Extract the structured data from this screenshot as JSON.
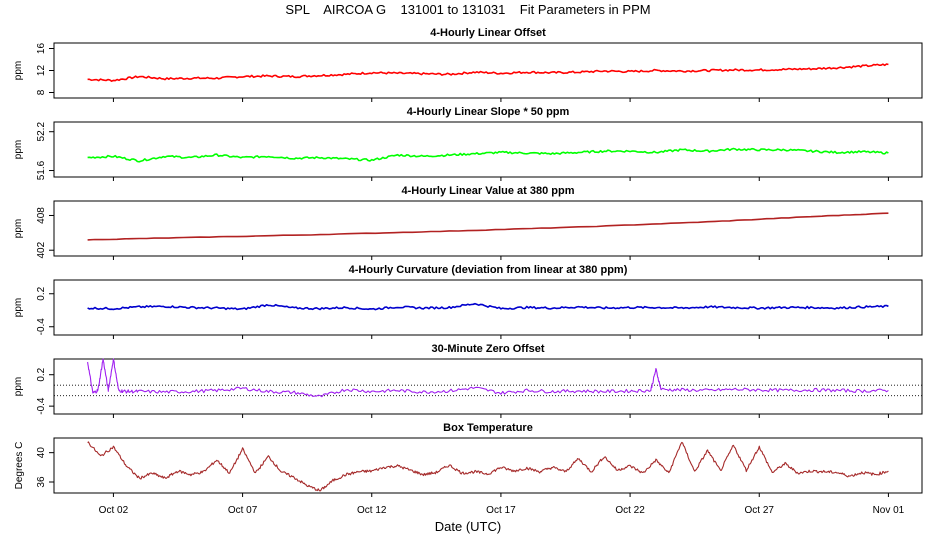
{
  "title": "SPL    AIRCOA G    131001 to 131031    Fit Parameters in PPM",
  "x_axis": {
    "title": "Date (UTC)",
    "ticks": [
      "Oct 02",
      "Oct 07",
      "Oct 12",
      "Oct 17",
      "Oct 22",
      "Oct 27",
      "Nov 01"
    ],
    "tick_days": [
      2,
      7,
      12,
      17,
      22,
      27,
      32
    ],
    "range_days": [
      -0.3,
      33.3
    ],
    "data_range_days": [
      1.0,
      32.0
    ]
  },
  "chart_data": [
    {
      "type": "line",
      "title": "4-Hourly Linear Offset",
      "ylabel": "ppm",
      "yticks": [
        "8",
        "12",
        "16"
      ],
      "ytick_values": [
        8,
        12,
        16
      ],
      "ylim": [
        7,
        17
      ],
      "color": "#ff0000",
      "series": [
        {
          "x": [
            1,
            2,
            3,
            4,
            5,
            6,
            7,
            8,
            9,
            10,
            11,
            12,
            13,
            14,
            15,
            16,
            17,
            18,
            19,
            20,
            21,
            22,
            23,
            24,
            25,
            26,
            27,
            28,
            29,
            30,
            31,
            32
          ],
          "y": [
            10.4,
            10.2,
            10.9,
            10.5,
            10.6,
            10.6,
            10.9,
            11.0,
            10.9,
            11.1,
            11.3,
            11.6,
            11.5,
            11.4,
            11.3,
            11.7,
            11.5,
            11.7,
            11.6,
            11.7,
            11.9,
            11.8,
            12.0,
            11.9,
            12.0,
            12.1,
            12.1,
            12.2,
            12.3,
            12.5,
            12.8,
            13.1
          ]
        }
      ]
    },
    {
      "type": "line",
      "title": "4-Hourly Linear Slope * 50 ppm",
      "ylabel": "ppm",
      "yticks": [
        "51.6",
        "52.2"
      ],
      "ytick_values": [
        51.6,
        52.2
      ],
      "ylim": [
        51.5,
        52.35
      ],
      "color": "#00ff00",
      "series": [
        {
          "x": [
            1,
            2,
            3,
            4,
            5,
            6,
            7,
            8,
            9,
            10,
            11,
            12,
            13,
            14,
            15,
            16,
            17,
            18,
            19,
            20,
            21,
            22,
            23,
            24,
            25,
            26,
            27,
            28,
            29,
            30,
            31,
            32
          ],
          "y": [
            51.8,
            51.82,
            51.75,
            51.82,
            51.8,
            51.84,
            51.8,
            51.82,
            51.79,
            51.8,
            51.78,
            51.76,
            51.84,
            51.82,
            51.84,
            51.86,
            51.88,
            51.87,
            51.86,
            51.88,
            51.9,
            51.9,
            51.88,
            51.92,
            51.9,
            51.93,
            51.92,
            51.92,
            51.9,
            51.88,
            51.89,
            51.87
          ]
        }
      ]
    },
    {
      "type": "line",
      "title": "4-Hourly Linear Value at 380 ppm",
      "ylabel": "ppm",
      "yticks": [
        "402",
        "408"
      ],
      "ytick_values": [
        402,
        408
      ],
      "ylim": [
        401,
        410.5
      ],
      "color": "#b22222",
      "series": [
        {
          "x": [
            1,
            5,
            10,
            15,
            20,
            25,
            29,
            32
          ],
          "y": [
            403.8,
            404.2,
            404.7,
            405.3,
            406.0,
            406.9,
            407.8,
            408.4
          ]
        }
      ]
    },
    {
      "type": "line",
      "title": "4-Hourly Curvature (deviation from linear at 380 ppm)",
      "ylabel": "ppm",
      "yticks": [
        "-0.4",
        "0.2"
      ],
      "ytick_values": [
        -0.4,
        0.2
      ],
      "ylim": [
        -0.55,
        0.45
      ],
      "color": "#0000cd",
      "series": [
        {
          "x": [
            1,
            2,
            3,
            4,
            5,
            6,
            7,
            8,
            9,
            10,
            11,
            12,
            13,
            14,
            15,
            16,
            17,
            18,
            19,
            20,
            21,
            22,
            23,
            24,
            25,
            26,
            27,
            28,
            29,
            30,
            31,
            32
          ],
          "y": [
            -0.06,
            -0.07,
            -0.04,
            -0.03,
            -0.05,
            -0.06,
            -0.08,
            0.0,
            -0.06,
            -0.07,
            -0.05,
            -0.08,
            -0.04,
            -0.06,
            -0.05,
            0.02,
            -0.07,
            -0.05,
            -0.06,
            -0.04,
            -0.06,
            -0.05,
            -0.05,
            -0.06,
            -0.04,
            -0.05,
            -0.06,
            -0.05,
            -0.05,
            -0.06,
            -0.04,
            -0.03
          ]
        }
      ]
    },
    {
      "type": "line",
      "title": "30-Minute Zero Offset",
      "ylabel": "ppm",
      "yticks": [
        "-0.4",
        "0.2"
      ],
      "ytick_values": [
        -0.4,
        0.2
      ],
      "ylim": [
        -0.55,
        0.5
      ],
      "color": "#a020f0",
      "reference_lines": [
        0.0,
        -0.2
      ],
      "series": [
        {
          "x": [
            1,
            1.2,
            1.4,
            1.6,
            1.8,
            2,
            2.2,
            2.5,
            3,
            4,
            5,
            6,
            7,
            8,
            9,
            10,
            11,
            12,
            13,
            14,
            15,
            16,
            17,
            18,
            19,
            20,
            21,
            22,
            22.8,
            23,
            23.2,
            24,
            25,
            26,
            27,
            28,
            29,
            30,
            31,
            32
          ],
          "y": [
            0.45,
            -0.15,
            -0.1,
            0.5,
            -0.1,
            0.5,
            -0.1,
            -0.12,
            -0.12,
            -0.13,
            -0.12,
            -0.1,
            -0.06,
            -0.12,
            -0.14,
            -0.22,
            -0.08,
            -0.12,
            -0.1,
            -0.13,
            -0.11,
            -0.05,
            -0.15,
            -0.1,
            -0.12,
            -0.11,
            -0.12,
            -0.11,
            -0.1,
            0.3,
            -0.08,
            -0.09,
            -0.1,
            -0.08,
            -0.09,
            -0.1,
            -0.09,
            -0.1,
            -0.11,
            -0.1
          ]
        }
      ]
    },
    {
      "type": "line",
      "title": "Box Temperature",
      "ylabel": "Degrees C",
      "yticks": [
        "36",
        "40"
      ],
      "ytick_values": [
        36,
        40
      ],
      "ylim": [
        34.5,
        42
      ],
      "color": "#a52a2a",
      "series": [
        {
          "x": [
            1,
            1.5,
            2,
            2.5,
            3,
            3.5,
            4,
            4.5,
            5,
            5.5,
            6,
            6.5,
            7,
            7.5,
            8,
            8.5,
            9,
            9.5,
            10,
            10.5,
            11,
            11.5,
            12,
            12.5,
            13,
            13.5,
            14,
            14.5,
            15,
            15.5,
            16,
            16.5,
            17,
            17.5,
            18,
            18.5,
            19,
            19.5,
            20,
            20.5,
            21,
            21.5,
            22,
            22.5,
            23,
            23.5,
            24,
            24.5,
            25,
            25.5,
            26,
            26.5,
            27,
            27.5,
            28,
            28.5,
            29,
            29.5,
            30,
            30.5,
            31,
            31.5,
            32
          ],
          "y": [
            41.5,
            39.5,
            40.8,
            38.2,
            36.5,
            37.2,
            36.5,
            37.5,
            37.0,
            37.4,
            39.0,
            37.2,
            40.5,
            37.2,
            39.5,
            37.4,
            36.6,
            35.5,
            34.8,
            36.2,
            37.0,
            37.4,
            37.5,
            38.0,
            38.2,
            37.6,
            37.0,
            37.3,
            38.3,
            37.2,
            37.4,
            37.1,
            38.0,
            37.5,
            37.9,
            37.4,
            38.0,
            37.4,
            39.2,
            37.4,
            39.5,
            37.6,
            38.2,
            37.2,
            39.0,
            37.2,
            41.5,
            37.4,
            40.3,
            37.5,
            41.0,
            37.6,
            40.8,
            37.3,
            38.5,
            37.2,
            37.5,
            37.4,
            37.3,
            36.8,
            37.3,
            37.0,
            37.5
          ]
        }
      ]
    }
  ]
}
